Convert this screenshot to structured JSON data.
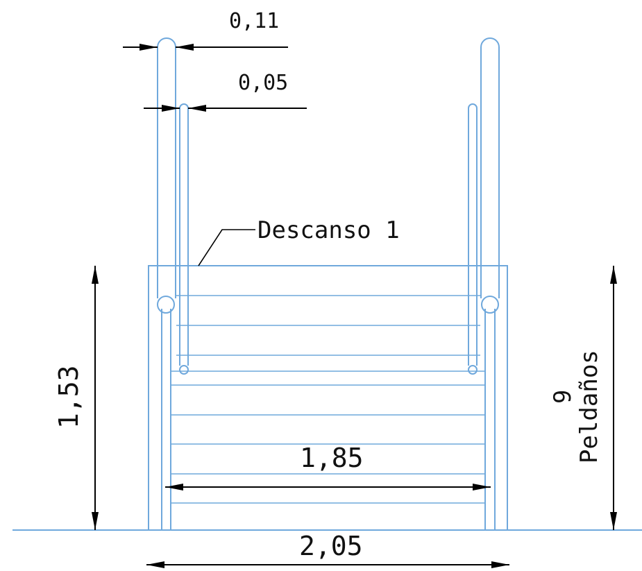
{
  "labels": {
    "handrail_outer_width": "0,11",
    "handrail_inner_width": "0,05",
    "landing": "Descanso 1",
    "height": "1,53",
    "step_count": "9",
    "step_label": "Peldaños",
    "inner_width": "1,85",
    "outer_width": "2,05"
  },
  "colors": {
    "geometry": "#6fa8dc",
    "annotation": "#000000",
    "background": "#ffffff"
  }
}
